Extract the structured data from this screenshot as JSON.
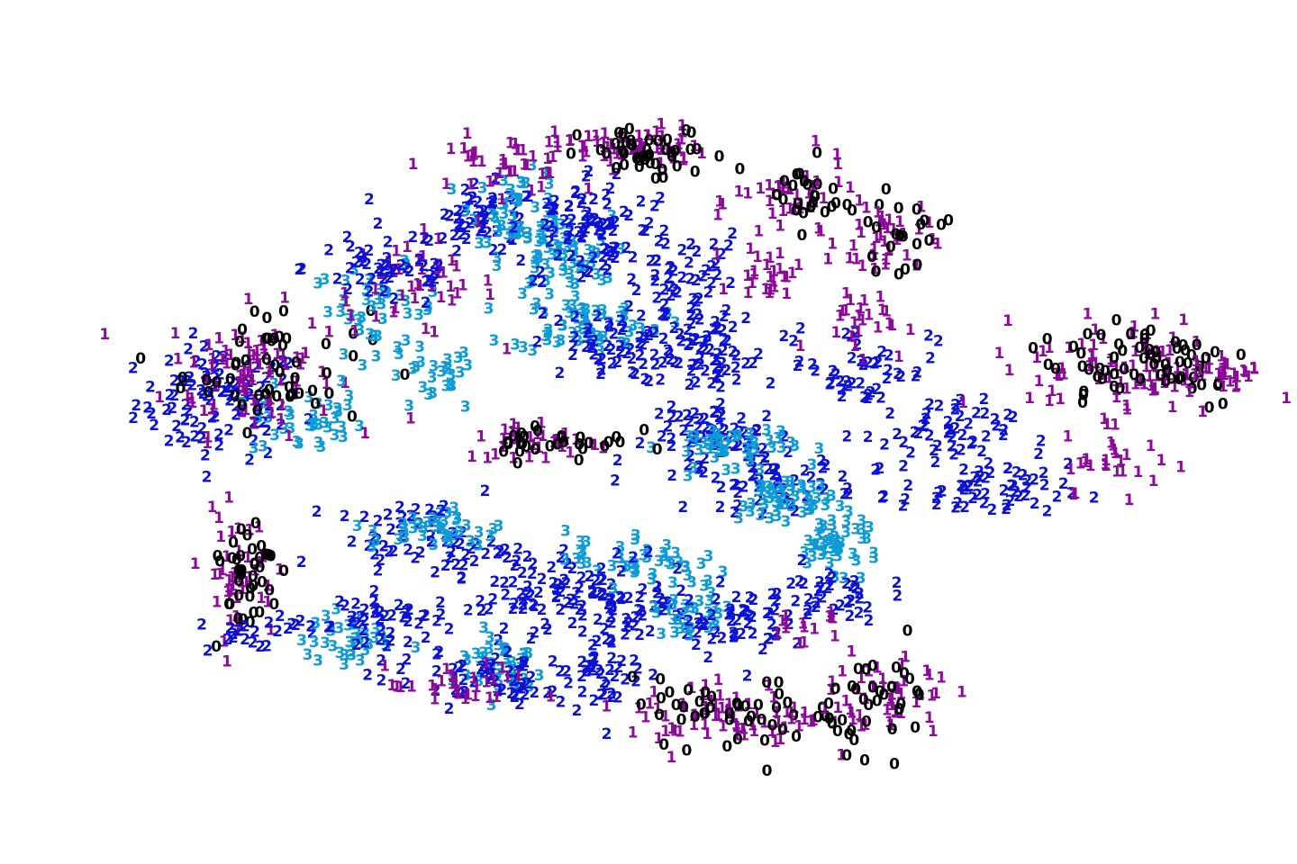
{
  "chart_data": {
    "type": "scatter",
    "title": "",
    "xlabel": "",
    "ylabel": "",
    "axes_visible": false,
    "grid": false,
    "legend": "none",
    "marker_style": "text labels showing each point's class",
    "classes": [
      "0",
      "1",
      "2",
      "3"
    ],
    "colors": {
      "0": "#000000",
      "1": "#8b0a9a",
      "2": "#0a10d6",
      "3": "#0d9bd6"
    },
    "xlim": [
      -10,
      10
    ],
    "ylim": [
      -8,
      8
    ],
    "clusters": [
      {
        "label": "2",
        "cx": -6.9,
        "cy": 0.7,
        "sx": 0.9,
        "sy": 0.8,
        "n": 95
      },
      {
        "label": "3",
        "cx": -5.5,
        "cy": 0.3,
        "sx": 0.6,
        "sy": 0.5,
        "n": 35
      },
      {
        "label": "1",
        "cx": -6.4,
        "cy": 1.4,
        "sx": 0.9,
        "sy": 0.9,
        "n": 80
      },
      {
        "label": "0",
        "cx": -6.0,
        "cy": 1.5,
        "sx": 1.0,
        "sy": 0.9,
        "n": 50
      },
      {
        "label": "3",
        "cx": -4.4,
        "cy": 2.7,
        "sx": 0.7,
        "sy": 0.6,
        "n": 40
      },
      {
        "label": "1",
        "cx": -3.8,
        "cy": 3.2,
        "sx": 0.9,
        "sy": 0.7,
        "n": 45
      },
      {
        "label": "2",
        "cx": -4.2,
        "cy": 3.6,
        "sx": 0.9,
        "sy": 0.6,
        "n": 45
      },
      {
        "label": "3",
        "cx": -3.5,
        "cy": 1.2,
        "sx": 0.5,
        "sy": 0.5,
        "n": 25
      },
      {
        "label": "2",
        "cx": -2.6,
        "cy": 4.6,
        "sx": 0.6,
        "sy": 0.5,
        "n": 50
      },
      {
        "label": "3",
        "cx": -2.1,
        "cy": 4.9,
        "sx": 0.5,
        "sy": 0.5,
        "n": 40
      },
      {
        "label": "1",
        "cx": -2.4,
        "cy": 5.8,
        "sx": 0.8,
        "sy": 0.4,
        "n": 40
      },
      {
        "label": "3",
        "cx": -1.5,
        "cy": 3.8,
        "sx": 0.6,
        "sy": 0.6,
        "n": 60
      },
      {
        "label": "2",
        "cx": -0.9,
        "cy": 4.4,
        "sx": 0.9,
        "sy": 0.9,
        "n": 90
      },
      {
        "label": "3",
        "cx": -1.0,
        "cy": 2.4,
        "sx": 0.8,
        "sy": 0.4,
        "n": 55
      },
      {
        "label": "2",
        "cx": -0.7,
        "cy": 1.9,
        "sx": 0.8,
        "sy": 0.5,
        "n": 55
      },
      {
        "label": "1",
        "cx": -0.3,
        "cy": 6.2,
        "sx": 0.8,
        "sy": 0.3,
        "n": 60
      },
      {
        "label": "0",
        "cx": 0.1,
        "cy": 6.0,
        "sx": 0.8,
        "sy": 0.4,
        "n": 45
      },
      {
        "label": "2",
        "cx": 0.6,
        "cy": 3.1,
        "sx": 0.6,
        "sy": 0.8,
        "n": 60
      },
      {
        "label": "2",
        "cx": 1.0,
        "cy": 1.6,
        "sx": 0.6,
        "sy": 0.6,
        "n": 50
      },
      {
        "label": "2",
        "cx": 1.2,
        "cy": 0.0,
        "sx": 0.8,
        "sy": 0.4,
        "n": 55
      },
      {
        "label": "2",
        "cx": 2.0,
        "cy": -1.0,
        "sx": 0.9,
        "sy": 0.4,
        "n": 55
      },
      {
        "label": "3",
        "cx": 1.3,
        "cy": -0.2,
        "sx": 0.7,
        "sy": 0.3,
        "n": 45
      },
      {
        "label": "3",
        "cx": 2.2,
        "cy": -1.4,
        "sx": 0.5,
        "sy": 0.4,
        "n": 50
      },
      {
        "label": "3",
        "cx": 3.0,
        "cy": -2.3,
        "sx": 0.5,
        "sy": 0.4,
        "n": 45
      },
      {
        "label": "1",
        "cx": 2.3,
        "cy": 5.0,
        "sx": 0.6,
        "sy": 0.6,
        "n": 40
      },
      {
        "label": "0",
        "cx": 2.6,
        "cy": 5.1,
        "sx": 0.5,
        "sy": 0.5,
        "n": 25
      },
      {
        "label": "1",
        "cx": 3.8,
        "cy": 4.2,
        "sx": 0.5,
        "sy": 0.6,
        "n": 40
      },
      {
        "label": "0",
        "cx": 4.0,
        "cy": 4.3,
        "sx": 0.5,
        "sy": 0.5,
        "n": 20
      },
      {
        "label": "1",
        "cx": 2.0,
        "cy": 3.5,
        "sx": 0.4,
        "sy": 0.4,
        "n": 25
      },
      {
        "label": "2",
        "cx": 3.4,
        "cy": 1.5,
        "sx": 0.8,
        "sy": 0.6,
        "n": 45
      },
      {
        "label": "1",
        "cx": 3.4,
        "cy": 2.5,
        "sx": 0.5,
        "sy": 0.5,
        "n": 25
      },
      {
        "label": "2",
        "cx": 4.6,
        "cy": 0.0,
        "sx": 0.8,
        "sy": 0.5,
        "n": 50
      },
      {
        "label": "2",
        "cx": 5.4,
        "cy": -1.2,
        "sx": 0.9,
        "sy": 0.4,
        "n": 55
      },
      {
        "label": "1",
        "cx": 7.8,
        "cy": 1.5,
        "sx": 1.1,
        "sy": 0.7,
        "n": 95
      },
      {
        "label": "0",
        "cx": 8.0,
        "cy": 1.6,
        "sx": 1.2,
        "sy": 0.7,
        "n": 65
      },
      {
        "label": "1",
        "cx": 7.6,
        "cy": -0.6,
        "sx": 0.6,
        "sy": 0.4,
        "n": 25
      },
      {
        "label": "1",
        "cx": 9.4,
        "cy": 1.3,
        "sx": 0.5,
        "sy": 0.3,
        "n": 20
      },
      {
        "label": "1",
        "cx": -1.8,
        "cy": -0.1,
        "sx": 0.8,
        "sy": 0.3,
        "n": 35
      },
      {
        "label": "0",
        "cx": -1.5,
        "cy": -0.1,
        "sx": 0.8,
        "sy": 0.3,
        "n": 30
      },
      {
        "label": "1",
        "cx": -6.6,
        "cy": -3.0,
        "sx": 0.4,
        "sy": 0.9,
        "n": 45
      },
      {
        "label": "0",
        "cx": -6.5,
        "cy": -2.9,
        "sx": 0.4,
        "sy": 0.9,
        "n": 40
      },
      {
        "label": "2",
        "cx": -6.4,
        "cy": -4.2,
        "sx": 0.5,
        "sy": 0.3,
        "n": 20
      },
      {
        "label": "2",
        "cx": -3.7,
        "cy": -2.2,
        "sx": 0.9,
        "sy": 0.5,
        "n": 50
      },
      {
        "label": "3",
        "cx": -3.4,
        "cy": -2.0,
        "sx": 0.7,
        "sy": 0.3,
        "n": 40
      },
      {
        "label": "2",
        "cx": -2.0,
        "cy": -3.2,
        "sx": 0.9,
        "sy": 0.6,
        "n": 65
      },
      {
        "label": "3",
        "cx": -4.8,
        "cy": -4.4,
        "sx": 0.5,
        "sy": 0.4,
        "n": 35
      },
      {
        "label": "2",
        "cx": -4.4,
        "cy": -4.0,
        "sx": 0.8,
        "sy": 0.5,
        "n": 50
      },
      {
        "label": "3",
        "cx": -2.4,
        "cy": -4.9,
        "sx": 0.5,
        "sy": 0.5,
        "n": 40
      },
      {
        "label": "2",
        "cx": -2.6,
        "cy": -5.2,
        "sx": 1.0,
        "sy": 0.4,
        "n": 55
      },
      {
        "label": "1",
        "cx": -3.0,
        "cy": -5.4,
        "sx": 0.8,
        "sy": 0.3,
        "n": 30
      },
      {
        "label": "3",
        "cx": -0.3,
        "cy": -2.6,
        "sx": 0.7,
        "sy": 0.4,
        "n": 40
      },
      {
        "label": "2",
        "cx": -0.4,
        "cy": -3.5,
        "sx": 0.8,
        "sy": 0.6,
        "n": 60
      },
      {
        "label": "2",
        "cx": -0.7,
        "cy": -5.0,
        "sx": 0.4,
        "sy": 0.6,
        "n": 40
      },
      {
        "label": "3",
        "cx": 0.8,
        "cy": -3.6,
        "sx": 0.5,
        "sy": 0.5,
        "n": 35
      },
      {
        "label": "2",
        "cx": 1.3,
        "cy": -4.0,
        "sx": 0.6,
        "sy": 0.5,
        "n": 45
      },
      {
        "label": "2",
        "cx": 2.7,
        "cy": -3.4,
        "sx": 0.7,
        "sy": 0.4,
        "n": 40
      },
      {
        "label": "1",
        "cx": 2.5,
        "cy": -4.0,
        "sx": 0.4,
        "sy": 0.3,
        "n": 15
      },
      {
        "label": "1",
        "cx": 1.3,
        "cy": -6.0,
        "sx": 1.1,
        "sy": 0.5,
        "n": 70
      },
      {
        "label": "0",
        "cx": 1.4,
        "cy": -6.0,
        "sx": 1.1,
        "sy": 0.5,
        "n": 45
      },
      {
        "label": "1",
        "cx": 3.8,
        "cy": -5.6,
        "sx": 0.7,
        "sy": 0.7,
        "n": 50
      },
      {
        "label": "0",
        "cx": 3.8,
        "cy": -5.6,
        "sx": 0.6,
        "sy": 0.7,
        "n": 35
      }
    ]
  }
}
